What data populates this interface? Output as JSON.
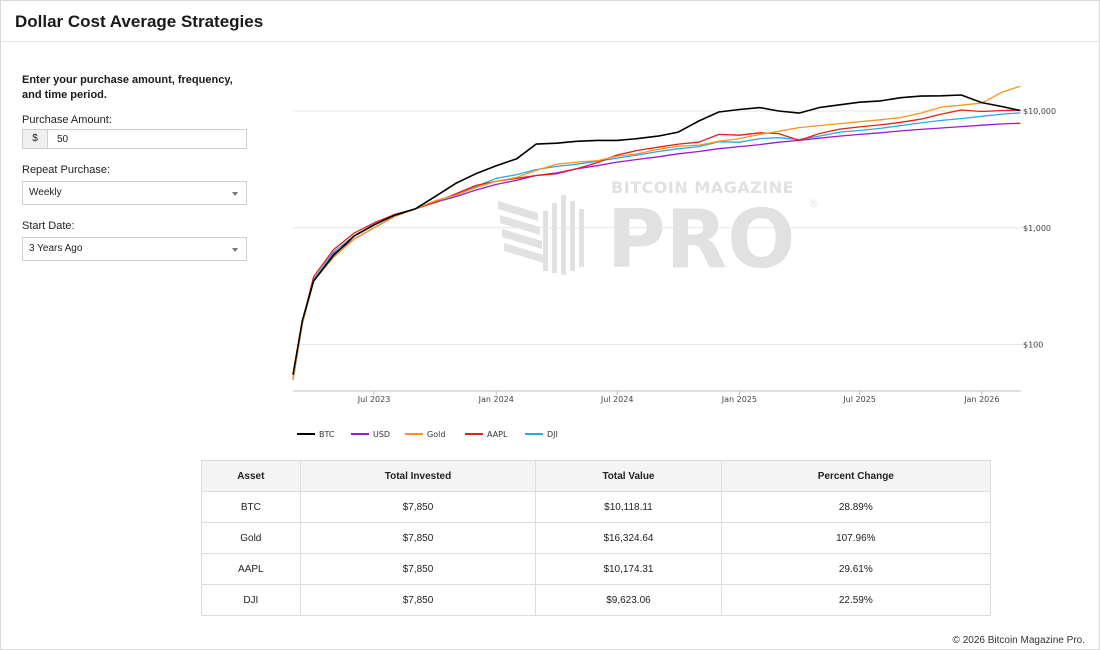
{
  "page": {
    "title": "Dollar Cost Average Strategies",
    "footer": "© 2026 Bitcoin Magazine Pro."
  },
  "form": {
    "intro": "Enter your purchase amount, frequency, and time period.",
    "amount_label": "Purchase Amount:",
    "currency_symbol": "$",
    "amount_value": "50",
    "repeat_label": "Repeat Purchase:",
    "repeat_value": "Weekly",
    "start_label": "Start Date:",
    "start_value": "3 Years Ago"
  },
  "watermark": {
    "line1": "BITCOIN MAGAZINE",
    "line2": "PRO",
    "mark": "®"
  },
  "chart_data": {
    "type": "line",
    "title": "",
    "y_scale": "log",
    "y_ticks": [
      100,
      1000,
      10000
    ],
    "y_tick_labels": [
      "$100",
      "$1,000",
      "$10,000"
    ],
    "x_range": [
      "2023-03-01",
      "2026-03-01"
    ],
    "x_ticks": [
      "2023-07-01",
      "2024-01-01",
      "2024-07-01",
      "2025-01-01",
      "2025-07-01",
      "2026-01-01"
    ],
    "x_tick_labels": [
      "Jul 2023",
      "Jan 2024",
      "Jul 2024",
      "Jan 2025",
      "Jul 2025",
      "Jan 2026"
    ],
    "grid": "horizontal",
    "legend": "bottom-left",
    "series": [
      {
        "name": "BTC",
        "color": "#000000",
        "x": [
          "2023-03-01",
          "2023-03-15",
          "2023-04-01",
          "2023-05-01",
          "2023-06-01",
          "2023-07-01",
          "2023-08-01",
          "2023-09-01",
          "2023-10-01",
          "2023-11-01",
          "2023-12-01",
          "2024-01-01",
          "2024-02-01",
          "2024-03-01",
          "2024-04-01",
          "2024-05-01",
          "2024-06-01",
          "2024-07-01",
          "2024-08-01",
          "2024-09-01",
          "2024-10-01",
          "2024-11-01",
          "2024-12-01",
          "2025-01-01",
          "2025-02-01",
          "2025-03-01",
          "2025-04-01",
          "2025-05-01",
          "2025-06-01",
          "2025-07-01",
          "2025-08-01",
          "2025-09-01",
          "2025-10-01",
          "2025-11-01",
          "2025-12-01",
          "2026-01-01",
          "2026-02-01",
          "2026-02-28"
        ],
        "y": [
          55,
          160,
          350,
          580,
          850,
          1060,
          1280,
          1450,
          1850,
          2400,
          2900,
          3400,
          3900,
          5200,
          5300,
          5500,
          5600,
          5600,
          5800,
          6100,
          6600,
          8200,
          9800,
          10300,
          10700,
          10000,
          9600,
          10700,
          11300,
          11900,
          12200,
          13000,
          13400,
          13500,
          13700,
          11800,
          10900,
          10100
        ]
      },
      {
        "name": "USD",
        "color": "#9b19d6",
        "x": [
          "2023-03-01",
          "2023-03-15",
          "2023-04-01",
          "2023-05-01",
          "2023-06-01",
          "2023-07-01",
          "2023-08-01",
          "2023-09-01",
          "2023-10-01",
          "2023-11-01",
          "2023-12-01",
          "2024-01-01",
          "2024-02-01",
          "2024-03-01",
          "2024-04-01",
          "2024-05-01",
          "2024-06-01",
          "2024-07-01",
          "2024-08-01",
          "2024-09-01",
          "2024-10-01",
          "2024-11-01",
          "2024-12-01",
          "2025-01-01",
          "2025-02-01",
          "2025-03-01",
          "2025-04-01",
          "2025-05-01",
          "2025-06-01",
          "2025-07-01",
          "2025-08-01",
          "2025-09-01",
          "2025-10-01",
          "2025-11-01",
          "2025-12-01",
          "2026-01-01",
          "2026-02-01",
          "2026-02-28"
        ],
        "y": [
          50,
          150,
          350,
          600,
          800,
          1000,
          1250,
          1450,
          1650,
          1850,
          2100,
          2350,
          2550,
          2800,
          2950,
          3200,
          3400,
          3650,
          3850,
          4050,
          4300,
          4500,
          4750,
          4950,
          5150,
          5400,
          5600,
          5850,
          6100,
          6300,
          6500,
          6750,
          6950,
          7150,
          7350,
          7550,
          7750,
          7850
        ]
      },
      {
        "name": "Gold",
        "color": "#f7961e",
        "x": [
          "2023-03-01",
          "2023-03-15",
          "2023-04-01",
          "2023-05-01",
          "2023-06-01",
          "2023-07-01",
          "2023-08-01",
          "2023-09-01",
          "2023-10-01",
          "2023-11-01",
          "2023-12-01",
          "2024-01-01",
          "2024-02-01",
          "2024-03-01",
          "2024-04-01",
          "2024-05-01",
          "2024-06-01",
          "2024-07-01",
          "2024-08-01",
          "2024-09-01",
          "2024-10-01",
          "2024-11-01",
          "2024-12-01",
          "2025-01-01",
          "2025-02-01",
          "2025-03-01",
          "2025-04-01",
          "2025-05-01",
          "2025-06-01",
          "2025-07-01",
          "2025-08-01",
          "2025-09-01",
          "2025-10-01",
          "2025-11-01",
          "2025-12-01",
          "2026-01-01",
          "2026-02-01",
          "2026-02-28"
        ],
        "y": [
          50,
          150,
          350,
          560,
          800,
          1000,
          1250,
          1450,
          1700,
          1900,
          2200,
          2500,
          2700,
          3100,
          3500,
          3650,
          3750,
          4100,
          4300,
          4700,
          5000,
          5100,
          5500,
          5800,
          6300,
          6700,
          7200,
          7500,
          7800,
          8100,
          8400,
          8800,
          9600,
          10800,
          11200,
          11700,
          14500,
          16300
        ]
      },
      {
        "name": "AAPL",
        "color": "#e32119",
        "x": [
          "2023-03-01",
          "2023-03-15",
          "2023-04-01",
          "2023-05-01",
          "2023-06-01",
          "2023-07-01",
          "2023-08-01",
          "2023-09-01",
          "2023-10-01",
          "2023-11-01",
          "2023-12-01",
          "2024-01-01",
          "2024-02-01",
          "2024-03-01",
          "2024-04-01",
          "2024-05-01",
          "2024-06-01",
          "2024-07-01",
          "2024-08-01",
          "2024-09-01",
          "2024-10-01",
          "2024-11-01",
          "2024-12-01",
          "2025-01-01",
          "2025-02-01",
          "2025-03-01",
          "2025-04-01",
          "2025-05-01",
          "2025-06-01",
          "2025-07-01",
          "2025-08-01",
          "2025-09-01",
          "2025-10-01",
          "2025-11-01",
          "2025-12-01",
          "2026-01-01",
          "2026-02-01",
          "2026-02-28"
        ],
        "y": [
          50,
          155,
          380,
          650,
          900,
          1100,
          1300,
          1450,
          1650,
          1950,
          2300,
          2500,
          2650,
          2800,
          2900,
          3200,
          3600,
          4200,
          4600,
          4900,
          5200,
          5400,
          6300,
          6200,
          6500,
          6400,
          5600,
          6400,
          7000,
          7300,
          7600,
          8000,
          8500,
          9400,
          10200,
          9900,
          10100,
          10174
        ]
      },
      {
        "name": "DJI",
        "color": "#29a9e6",
        "x": [
          "2023-03-01",
          "2023-03-15",
          "2023-04-01",
          "2023-05-01",
          "2023-06-01",
          "2023-07-01",
          "2023-08-01",
          "2023-09-01",
          "2023-10-01",
          "2023-11-01",
          "2023-12-01",
          "2024-01-01",
          "2024-02-01",
          "2024-03-01",
          "2024-04-01",
          "2024-05-01",
          "2024-06-01",
          "2024-07-01",
          "2024-08-01",
          "2024-09-01",
          "2024-10-01",
          "2024-11-01",
          "2024-12-01",
          "2025-01-01",
          "2025-02-01",
          "2025-03-01",
          "2025-04-01",
          "2025-05-01",
          "2025-06-01",
          "2025-07-01",
          "2025-08-01",
          "2025-09-01",
          "2025-10-01",
          "2025-11-01",
          "2025-12-01",
          "2026-01-01",
          "2026-02-01",
          "2026-02-28"
        ],
        "y": [
          50,
          150,
          360,
          620,
          850,
          1050,
          1300,
          1450,
          1650,
          1900,
          2250,
          2650,
          2850,
          3150,
          3350,
          3500,
          3700,
          3950,
          4200,
          4500,
          4750,
          4950,
          5450,
          5400,
          5800,
          5900,
          5700,
          6100,
          6600,
          6800,
          7100,
          7500,
          7900,
          8300,
          8600,
          9000,
          9400,
          9623
        ]
      }
    ]
  },
  "table": {
    "headers": [
      "Asset",
      "Total Invested",
      "Total Value",
      "Percent Change"
    ],
    "rows": [
      [
        "BTC",
        "$7,850",
        "$10,118.11",
        "28.89%"
      ],
      [
        "Gold",
        "$7,850",
        "$16,324.64",
        "107.96%"
      ],
      [
        "AAPL",
        "$7,850",
        "$10,174.31",
        "29.61%"
      ],
      [
        "DJI",
        "$7,850",
        "$9,623.06",
        "22.59%"
      ]
    ]
  }
}
